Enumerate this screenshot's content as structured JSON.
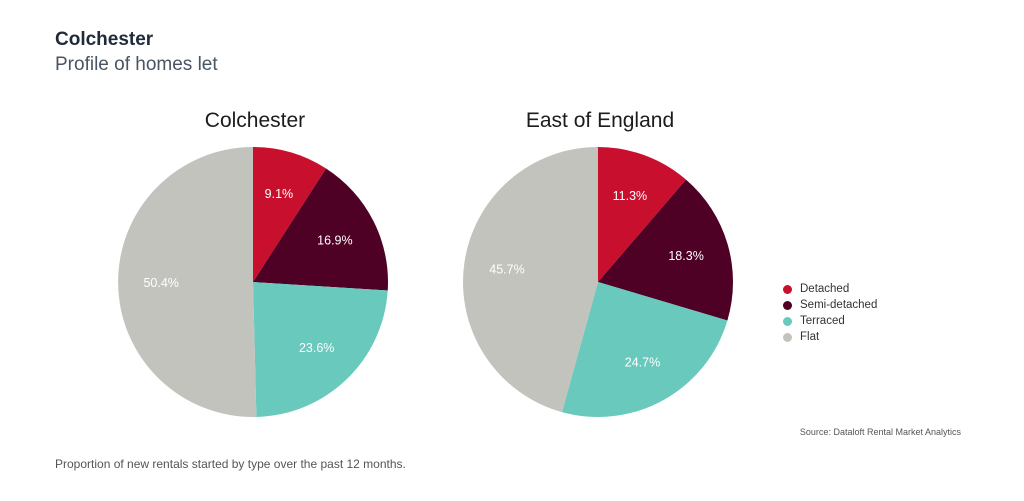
{
  "header": {
    "title": "Colchester",
    "subtitle": "Profile of homes let"
  },
  "chart_data": [
    {
      "type": "pie",
      "title": "Colchester",
      "categories": [
        "Detached",
        "Semi-detached",
        "Terraced",
        "Flat"
      ],
      "values": [
        9.1,
        16.9,
        23.6,
        50.4
      ],
      "labels": [
        "9.1%",
        "16.9%",
        "23.6%",
        "50.4%"
      ],
      "colors": [
        "#c8102e",
        "#4f0025",
        "#68c9bc",
        "#c2c3bd"
      ],
      "legend": "right"
    },
    {
      "type": "pie",
      "title": "East of England",
      "categories": [
        "Detached",
        "Semi-detached",
        "Terraced",
        "Flat"
      ],
      "values": [
        11.3,
        18.3,
        24.7,
        45.7
      ],
      "labels": [
        "11.3%",
        "18.3%",
        "24.7%",
        "45.7%"
      ],
      "colors": [
        "#c8102e",
        "#4f0025",
        "#68c9bc",
        "#c2c3bd"
      ],
      "legend": "right"
    }
  ],
  "legend": {
    "items": [
      {
        "label": "Detached",
        "color": "#c8102e"
      },
      {
        "label": "Semi-detached",
        "color": "#4f0025"
      },
      {
        "label": "Terraced",
        "color": "#68c9bc"
      },
      {
        "label": "Flat",
        "color": "#c2c3bd"
      }
    ]
  },
  "source": "Source: Dataloft Rental Market Analytics",
  "footnote": "Proportion of new rentals started by type over the past 12 months."
}
